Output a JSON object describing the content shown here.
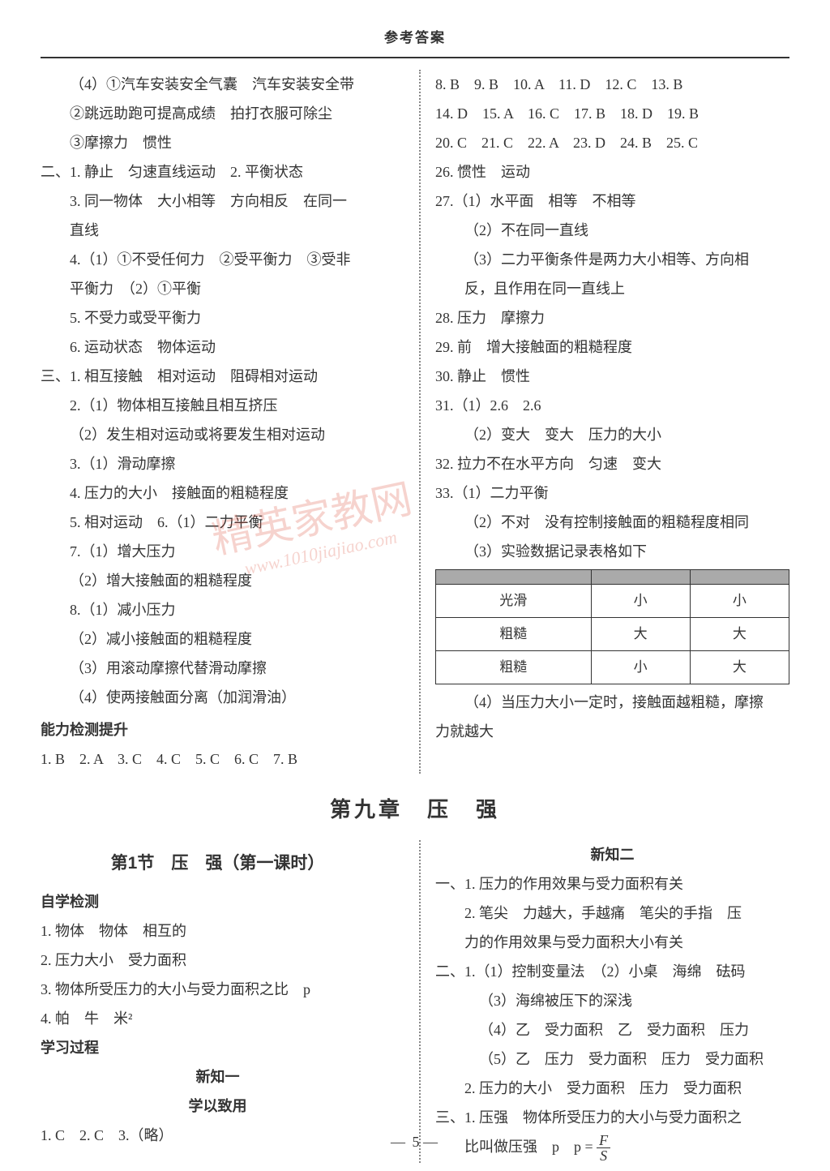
{
  "header": "参考答案",
  "watermark_main": "精英家教网",
  "watermark_url": "www.1010jiajiao.com",
  "top": {
    "left": [
      "（4）①汽车安装安全气囊　汽车安装安全带",
      "②跳远助跑可提高成绩　拍打衣服可除尘",
      "③摩擦力　惯性",
      "二、1. 静止　匀速直线运动　2. 平衡状态",
      "3. 同一物体　大小相等　方向相反　在同一",
      "直线",
      "4.（1）①不受任何力　②受平衡力　③受非",
      "平衡力　（2）①平衡",
      "5. 不受力或受平衡力",
      "6. 运动状态　物体运动",
      "三、1. 相互接触　相对运动　阻碍相对运动",
      "2.（1）物体相互接触且相互挤压",
      "（2）发生相对运动或将要发生相对运动",
      "3.（1）滑动摩擦",
      "4. 压力的大小　接触面的粗糙程度",
      "5. 相对运动　6.（1）二力平衡",
      "7.（1）增大压力",
      "（2）增大接触面的粗糙程度",
      "8.（1）减小压力",
      "（2）减小接触面的粗糙程度",
      "（3）用滚动摩擦代替滑动摩擦",
      "（4）使两接触面分离（加润滑油）"
    ],
    "ability_title": "能力检测提升",
    "left_mc": "1. B　2. A　3. C　4. C　5. C　6. C　7. B",
    "right": [
      "8. B　9. B　10. A　11. D　12. C　13. B",
      "14. D　15. A　16. C　17. B　18. D　19. B",
      "20. C　21. C　22. A　23. D　24. B　25. C",
      "26. 惯性　运动",
      "27.（1）水平面　相等　不相等",
      "（2）不在同一直线",
      "（3）二力平衡条件是两力大小相等、方向相",
      "反，且作用在同一直线上",
      "28. 压力　摩擦力",
      "29. 前　增大接触面的粗糙程度",
      "30. 静止　惯性",
      "31.（1）2.6　2.6",
      "（2）变大　变大　压力的大小",
      "32. 拉力不在水平方向　匀速　变大",
      "33.（1）二力平衡",
      "（2）不对　没有控制接触面的粗糙程度相同",
      "（3）实验数据记录表格如下"
    ],
    "table": {
      "headers": [
        "",
        "",
        ""
      ],
      "rows": [
        [
          "光滑",
          "小",
          "小"
        ],
        [
          "粗糙",
          "大",
          "大"
        ],
        [
          "粗糙",
          "小",
          "大"
        ]
      ]
    },
    "right_after_table": [
      "（4）当压力大小一定时，接触面越粗糙，摩擦",
      "力就越大"
    ]
  },
  "chapter": "第九章　压　强",
  "bottom": {
    "left": {
      "section_title": "第1节　压　强（第一课时）",
      "zixue_title": "自学检测",
      "zixue": [
        "1. 物体　物体　相互的",
        "2. 压力大小　受力面积",
        "3. 物体所受压力的大小与受力面积之比　p",
        "4. 帕　牛　米²"
      ],
      "xuexi_title": "学习过程",
      "xinzhi1": "新知一",
      "xueyi": "学以致用",
      "xueyi_ans": "1. C　2. C　3.（略）"
    },
    "right": {
      "xinzhi2": "新知二",
      "lines": [
        "一、1. 压力的作用效果与受力面积有关",
        "2. 笔尖　力越大，手越痛　笔尖的手指　压",
        "力的作用效果与受力面积大小有关",
        "二、1.（1）控制变量法　（2）小桌　海绵　砝码",
        "（3）海绵被压下的深浅",
        "（4）乙　受力面积　乙　受力面积　压力",
        "（5）乙　压力　受力面积　压力　受力面积",
        "2. 压力的大小　受力面积　压力　受力面积",
        "三、1. 压强　物体所受压力的大小与受力面积之"
      ],
      "formula_prefix": "比叫做压强　p　p ="
    }
  },
  "page_number": "5"
}
